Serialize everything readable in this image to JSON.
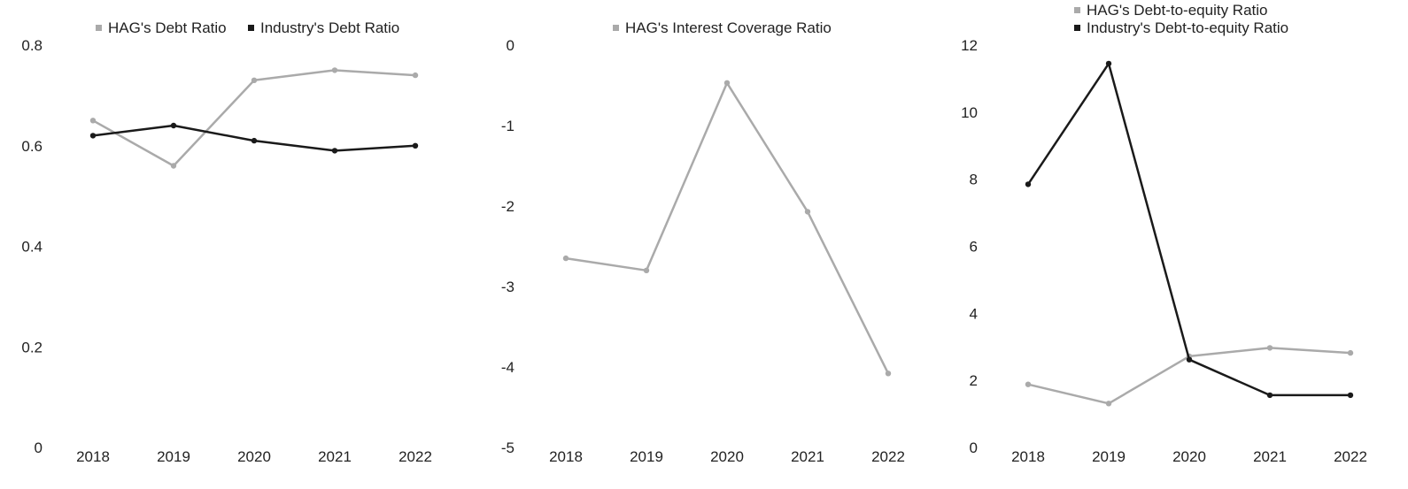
{
  "chart_data": [
    {
      "type": "line",
      "categories": [
        "2018",
        "2019",
        "2020",
        "2021",
        "2022"
      ],
      "series": [
        {
          "name": "HAG's Debt Ratio",
          "values": [
            0.65,
            0.56,
            0.73,
            0.75,
            0.74
          ],
          "color": "#aaaaaa"
        },
        {
          "name": "Industry's Debt Ratio",
          "values": [
            0.62,
            0.64,
            0.61,
            0.59,
            0.6
          ],
          "color": "#1a1a1a"
        }
      ],
      "ylim": [
        0,
        0.8
      ],
      "yticks": [
        "0",
        "0.2",
        "0.4",
        "0.6",
        "0.8"
      ],
      "legend_position": "top",
      "grid": false
    },
    {
      "type": "line",
      "categories": [
        "2018",
        "2019",
        "2020",
        "2021",
        "2022"
      ],
      "series": [
        {
          "name": "HAG's Interest Coverage Ratio",
          "values": [
            -2.65,
            -2.8,
            -0.47,
            -2.07,
            -4.08
          ],
          "color": "#aaaaaa"
        }
      ],
      "ylim": [
        -5,
        0
      ],
      "yticks": [
        "-5",
        "-4",
        "-3",
        "-2",
        "-1",
        "0"
      ],
      "legend_position": "top",
      "grid": false
    },
    {
      "type": "line",
      "categories": [
        "2018",
        "2019",
        "2020",
        "2021",
        "2022"
      ],
      "series": [
        {
          "name": "HAG's Debt-to-equity Ratio",
          "values": [
            1.88,
            1.31,
            2.72,
            2.97,
            2.82
          ],
          "color": "#aaaaaa"
        },
        {
          "name": "Industry's Debt-to-equity Ratio",
          "values": [
            7.85,
            11.45,
            2.62,
            1.56,
            1.56
          ],
          "color": "#1a1a1a"
        }
      ],
      "ylim": [
        0,
        12
      ],
      "yticks": [
        "0",
        "2",
        "4",
        "6",
        "8",
        "10",
        "12"
      ],
      "legend_position": "top",
      "grid": false
    }
  ]
}
